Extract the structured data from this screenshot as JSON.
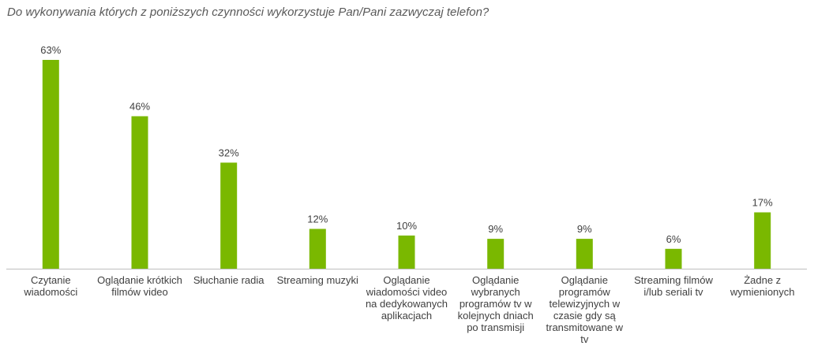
{
  "chart_data": {
    "type": "bar",
    "title": "Do wykonywania których z poniższych czynności wykorzystuje Pan/Pani zazwyczaj telefon?",
    "xlabel": "",
    "ylabel": "",
    "ylim": [
      0,
      63
    ],
    "grid": false,
    "color": "#7ab800",
    "unit": "%",
    "categories": [
      [
        "Czytanie",
        "wiadomości"
      ],
      [
        "Oglądanie krótkich",
        "filmów video"
      ],
      [
        "Słuchanie radia"
      ],
      [
        "Streaming muzyki"
      ],
      [
        "Oglądanie",
        "wiadomości video",
        "na dedykowanych",
        "aplikacjach"
      ],
      [
        "Oglądanie",
        "wybranych",
        "programów tv w",
        "kolejnych dniach",
        "po transmisji"
      ],
      [
        "Oglądanie",
        "programów",
        "telewizyjnych w",
        "czasie gdy są",
        "transmitowane w",
        "tv"
      ],
      [
        "Streaming filmów",
        "i/lub seriali tv"
      ],
      [
        "Żadne z",
        "wymienionych"
      ]
    ],
    "values": [
      63,
      46,
      32,
      12,
      10,
      9,
      9,
      6,
      17
    ],
    "value_labels": [
      "63%",
      "46%",
      "32%",
      "12%",
      "10%",
      "9%",
      "9%",
      "6%",
      "17%"
    ]
  }
}
